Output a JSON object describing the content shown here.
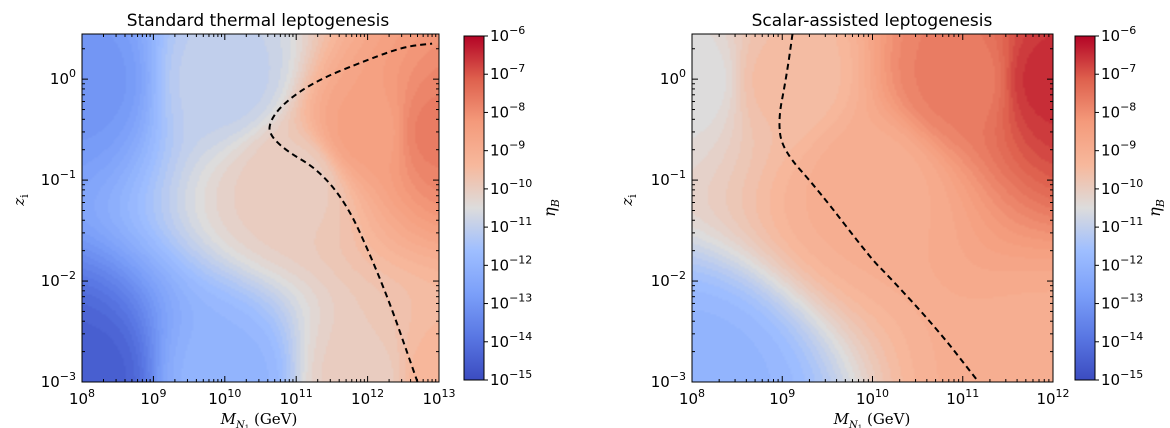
{
  "chart_data": [
    {
      "type": "heatmap",
      "title": "Standard thermal leptogenesis",
      "xlabel": "M_N1 (GeV)",
      "ylabel": "z_i",
      "x_scale": "log",
      "y_scale": "log",
      "xlim": [
        100000000.0,
        10000000000000.0
      ],
      "ylim": [
        0.001,
        2.8
      ],
      "x_ticks": [
        {
          "value": 100000000.0,
          "base": "10",
          "exp": "8"
        },
        {
          "value": 1000000000.0,
          "base": "10",
          "exp": "9"
        },
        {
          "value": 10000000000.0,
          "base": "10",
          "exp": "10"
        },
        {
          "value": 100000000000.0,
          "base": "10",
          "exp": "11"
        },
        {
          "value": 1000000000000.0,
          "base": "10",
          "exp": "12"
        },
        {
          "value": 10000000000000.0,
          "base": "10",
          "exp": "13"
        }
      ],
      "y_ticks": [
        {
          "value": 0.001,
          "base": "10",
          "exp": "−3"
        },
        {
          "value": 0.01,
          "base": "10",
          "exp": "−2"
        },
        {
          "value": 0.1,
          "base": "10",
          "exp": "−1"
        },
        {
          "value": 1,
          "base": "10",
          "exp": "0"
        }
      ],
      "colorbar": {
        "label": "η_B",
        "scale": "log",
        "range": [
          1e-15,
          1e-06
        ],
        "ticks": [
          {
            "value": 1e-15,
            "base": "10",
            "exp": "−15"
          },
          {
            "value": 1e-14,
            "base": "10",
            "exp": "−14"
          },
          {
            "value": 1e-13,
            "base": "10",
            "exp": "−13"
          },
          {
            "value": 1e-12,
            "base": "10",
            "exp": "−12"
          },
          {
            "value": 1e-11,
            "base": "10",
            "exp": "−11"
          },
          {
            "value": 1e-10,
            "base": "10",
            "exp": "−10"
          },
          {
            "value": 1e-09,
            "base": "10",
            "exp": "−9"
          },
          {
            "value": 1e-08,
            "base": "10",
            "exp": "−8"
          },
          {
            "value": 1e-07,
            "base": "10",
            "exp": "−7"
          },
          {
            "value": 1e-06,
            "base": "10",
            "exp": "−6"
          }
        ]
      },
      "observed_contour": {
        "style": "dashed",
        "points": [
          [
            5000000000000.0,
            0.001
          ],
          [
            1600000000000.0,
            0.01
          ],
          [
            360000000000.0,
            0.1
          ],
          [
            40000000000.0,
            0.25
          ],
          [
            45000000000.0,
            0.45
          ],
          [
            150000000000.0,
            0.9
          ],
          [
            1100000000000.0,
            1.6
          ],
          [
            3300000000000.0,
            2.1
          ],
          [
            8000000000000.0,
            2.25
          ]
        ]
      },
      "eta_samples": [
        {
          "x": 100000000.0,
          "y": 0.001,
          "eta": 3e-15
        },
        {
          "x": 100000000.0,
          "y": 1,
          "eta": 1e-13
        },
        {
          "x": 10000000000.0,
          "y": 0.001,
          "eta": 1e-12
        },
        {
          "x": 10000000000.0,
          "y": 1,
          "eta": 1e-11
        },
        {
          "x": 100000000000.0,
          "y": 0.1,
          "eta": 1e-10
        },
        {
          "x": 1000000000000.0,
          "y": 0.001,
          "eta": 1e-10
        },
        {
          "x": 1000000000000.0,
          "y": 0.3,
          "eta": 3e-09
        },
        {
          "x": 10000000000000.0,
          "y": 0.3,
          "eta": 2e-08
        },
        {
          "x": 10000000000000.0,
          "y": 0.001,
          "eta": 5e-10
        }
      ]
    },
    {
      "type": "heatmap",
      "title": "Scalar-assisted leptogenesis",
      "xlabel": "M_N1 (GeV)",
      "ylabel": "z_i",
      "x_scale": "log",
      "y_scale": "log",
      "xlim": [
        100000000.0,
        1000000000000.0
      ],
      "ylim": [
        0.001,
        2.8
      ],
      "x_ticks": [
        {
          "value": 100000000.0,
          "base": "10",
          "exp": "8"
        },
        {
          "value": 1000000000.0,
          "base": "10",
          "exp": "9"
        },
        {
          "value": 10000000000.0,
          "base": "10",
          "exp": "10"
        },
        {
          "value": 100000000000.0,
          "base": "10",
          "exp": "11"
        },
        {
          "value": 1000000000000.0,
          "base": "10",
          "exp": "12"
        }
      ],
      "y_ticks": [
        {
          "value": 0.001,
          "base": "10",
          "exp": "−3"
        },
        {
          "value": 0.01,
          "base": "10",
          "exp": "−2"
        },
        {
          "value": 0.1,
          "base": "10",
          "exp": "−1"
        },
        {
          "value": 1,
          "base": "10",
          "exp": "0"
        }
      ],
      "colorbar": {
        "label": "η_B",
        "scale": "log",
        "range": [
          1e-15,
          1e-06
        ],
        "ticks": [
          {
            "value": 1e-15,
            "base": "10",
            "exp": "−15"
          },
          {
            "value": 1e-14,
            "base": "10",
            "exp": "−14"
          },
          {
            "value": 1e-13,
            "base": "10",
            "exp": "−13"
          },
          {
            "value": 1e-12,
            "base": "10",
            "exp": "−12"
          },
          {
            "value": 1e-11,
            "base": "10",
            "exp": "−11"
          },
          {
            "value": 1e-10,
            "base": "10",
            "exp": "−10"
          },
          {
            "value": 1e-09,
            "base": "10",
            "exp": "−9"
          },
          {
            "value": 1e-08,
            "base": "10",
            "exp": "−8"
          },
          {
            "value": 1e-07,
            "base": "10",
            "exp": "−7"
          },
          {
            "value": 1e-06,
            "base": "10",
            "exp": "−6"
          }
        ]
      },
      "observed_contour": {
        "style": "dashed",
        "points": [
          [
            1300000000.0,
            2.8
          ],
          [
            1100000000.0,
            1.0
          ],
          [
            900000000.0,
            0.4
          ],
          [
            1000000000.0,
            0.2
          ],
          [
            2500000000.0,
            0.08
          ],
          [
            10000000000.0,
            0.016
          ],
          [
            14000000000.0,
            0.012
          ],
          [
            50000000000.0,
            0.0035
          ],
          [
            150000000000.0,
            0.001
          ]
        ]
      },
      "eta_samples": [
        {
          "x": 100000000.0,
          "y": 0.001,
          "eta": 1e-12
        },
        {
          "x": 100000000.0,
          "y": 1,
          "eta": 3e-11
        },
        {
          "x": 1000000000.0,
          "y": 1,
          "eta": 3e-10
        },
        {
          "x": 10000000000.0,
          "y": 0.1,
          "eta": 1e-09
        },
        {
          "x": 100000000000.0,
          "y": 1,
          "eta": 2e-08
        },
        {
          "x": 1000000000000.0,
          "y": 1,
          "eta": 3e-07
        },
        {
          "x": 1000000000000.0,
          "y": 0.001,
          "eta": 1e-09
        }
      ]
    }
  ]
}
